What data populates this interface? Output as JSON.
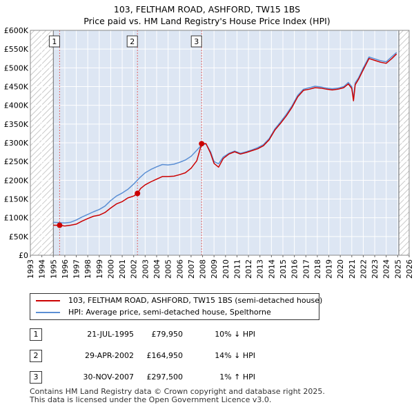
{
  "header": {
    "title": "103, FELTHAM ROAD, ASHFORD, TW15 1BS",
    "subtitle": "Price paid vs. HM Land Registry's House Price Index (HPI)"
  },
  "legend": {
    "items": [
      {
        "label": "103, FELTHAM ROAD, ASHFORD, TW15 1BS (semi-detached house)",
        "color": "#cc0000"
      },
      {
        "label": "HPI: Average price, semi-detached house, Spelthorne",
        "color": "#5b8fd4"
      }
    ]
  },
  "transactions": [
    {
      "marker": "1",
      "date": "21-JUL-1995",
      "price": "£79,950",
      "hpi_diff": "10% ↓ HPI"
    },
    {
      "marker": "2",
      "date": "29-APR-2002",
      "price": "£164,950",
      "hpi_diff": "14% ↓ HPI"
    },
    {
      "marker": "3",
      "date": "30-NOV-2007",
      "price": "£297,500",
      "hpi_diff": "1% ↑ HPI"
    }
  ],
  "footer": {
    "line1": "Contains HM Land Registry data © Crown copyright and database right 2025.",
    "line2": "This data is licensed under the Open Government Licence v3.0."
  },
  "chart_data": {
    "type": "line",
    "xlim": [
      1993,
      2026
    ],
    "ylim": [
      0,
      600000
    ],
    "y_ticks": [
      {
        "value": 0,
        "label": "£0"
      },
      {
        "value": 50000,
        "label": "£50K"
      },
      {
        "value": 100000,
        "label": "£100K"
      },
      {
        "value": 150000,
        "label": "£150K"
      },
      {
        "value": 200000,
        "label": "£200K"
      },
      {
        "value": 250000,
        "label": "£250K"
      },
      {
        "value": 300000,
        "label": "£300K"
      },
      {
        "value": 350000,
        "label": "£350K"
      },
      {
        "value": 400000,
        "label": "£400K"
      },
      {
        "value": 450000,
        "label": "£450K"
      },
      {
        "value": 500000,
        "label": "£500K"
      },
      {
        "value": 550000,
        "label": "£550K"
      },
      {
        "value": 600000,
        "label": "£600K"
      }
    ],
    "x_ticks": [
      "1993",
      "1994",
      "1995",
      "1996",
      "1997",
      "1998",
      "1999",
      "2000",
      "2001",
      "2002",
      "2003",
      "2004",
      "2005",
      "2006",
      "2007",
      "2008",
      "2009",
      "2010",
      "2011",
      "2012",
      "2013",
      "2014",
      "2015",
      "2016",
      "2017",
      "2018",
      "2019",
      "2020",
      "2021",
      "2022",
      "2023",
      "2024",
      "2025",
      "2026"
    ],
    "grid": true,
    "hatched_ranges": [
      [
        1993,
        1995.0
      ],
      [
        2025.1,
        2026
      ]
    ],
    "background_color": "#dde6f3",
    "grid_color": "#ffffff",
    "series": [
      {
        "name": "103, FELTHAM ROAD, ASHFORD, TW15 1BS (semi-detached house)",
        "color": "#cc0000",
        "points": [
          [
            1995.0,
            80000
          ],
          [
            1995.55,
            79950
          ],
          [
            1996.0,
            78000
          ],
          [
            1996.5,
            80000
          ],
          [
            1997.0,
            83000
          ],
          [
            1997.5,
            91000
          ],
          [
            1998.0,
            98000
          ],
          [
            1998.5,
            104000
          ],
          [
            1999.0,
            107000
          ],
          [
            1999.5,
            114000
          ],
          [
            2000.0,
            126000
          ],
          [
            2000.5,
            137000
          ],
          [
            2001.0,
            143000
          ],
          [
            2001.5,
            153000
          ],
          [
            2002.0,
            158000
          ],
          [
            2002.33,
            164950
          ],
          [
            2002.6,
            178000
          ],
          [
            2003.0,
            188000
          ],
          [
            2003.5,
            196000
          ],
          [
            2004.0,
            203000
          ],
          [
            2004.5,
            210000
          ],
          [
            2005.0,
            210000
          ],
          [
            2005.5,
            211000
          ],
          [
            2006.0,
            215000
          ],
          [
            2006.5,
            220000
          ],
          [
            2007.0,
            232000
          ],
          [
            2007.5,
            252000
          ],
          [
            2007.92,
            297500
          ],
          [
            2008.3,
            298000
          ],
          [
            2008.7,
            272000
          ],
          [
            2009.0,
            245000
          ],
          [
            2009.4,
            235000
          ],
          [
            2009.8,
            258000
          ],
          [
            2010.3,
            270000
          ],
          [
            2010.8,
            276000
          ],
          [
            2011.3,
            270000
          ],
          [
            2011.8,
            274000
          ],
          [
            2012.3,
            279000
          ],
          [
            2012.8,
            284000
          ],
          [
            2013.3,
            292000
          ],
          [
            2013.8,
            308000
          ],
          [
            2014.3,
            334000
          ],
          [
            2014.8,
            352000
          ],
          [
            2015.3,
            372000
          ],
          [
            2015.8,
            395000
          ],
          [
            2016.3,
            423000
          ],
          [
            2016.8,
            440000
          ],
          [
            2017.3,
            443000
          ],
          [
            2017.8,
            447000
          ],
          [
            2018.3,
            446000
          ],
          [
            2018.8,
            443000
          ],
          [
            2019.3,
            441000
          ],
          [
            2019.8,
            443000
          ],
          [
            2020.3,
            447000
          ],
          [
            2020.7,
            457000
          ],
          [
            2021.0,
            445000
          ],
          [
            2021.15,
            412000
          ],
          [
            2021.3,
            455000
          ],
          [
            2021.6,
            470000
          ],
          [
            2022.0,
            495000
          ],
          [
            2022.5,
            525000
          ],
          [
            2023.0,
            520000
          ],
          [
            2023.5,
            515000
          ],
          [
            2024.0,
            512000
          ],
          [
            2024.5,
            525000
          ],
          [
            2024.9,
            537000
          ]
        ]
      },
      {
        "name": "HPI: Average price, semi-detached house, Spelthorne",
        "color": "#5b8fd4",
        "points": [
          [
            1995.0,
            88000
          ],
          [
            1995.5,
            87000
          ],
          [
            1996.0,
            86000
          ],
          [
            1996.5,
            88000
          ],
          [
            1997.0,
            94000
          ],
          [
            1997.5,
            102000
          ],
          [
            1998.0,
            109000
          ],
          [
            1998.5,
            116000
          ],
          [
            1999.0,
            122000
          ],
          [
            1999.5,
            131000
          ],
          [
            2000.0,
            146000
          ],
          [
            2000.5,
            158000
          ],
          [
            2001.0,
            166000
          ],
          [
            2001.5,
            176000
          ],
          [
            2002.0,
            190000
          ],
          [
            2002.5,
            206000
          ],
          [
            2003.0,
            220000
          ],
          [
            2003.5,
            229000
          ],
          [
            2004.0,
            236000
          ],
          [
            2004.5,
            242000
          ],
          [
            2005.0,
            241000
          ],
          [
            2005.5,
            243000
          ],
          [
            2006.0,
            248000
          ],
          [
            2006.5,
            254000
          ],
          [
            2007.0,
            264000
          ],
          [
            2007.5,
            280000
          ],
          [
            2007.92,
            294000
          ],
          [
            2008.3,
            297000
          ],
          [
            2008.7,
            276000
          ],
          [
            2009.0,
            250000
          ],
          [
            2009.4,
            244000
          ],
          [
            2009.8,
            262000
          ],
          [
            2010.3,
            272000
          ],
          [
            2010.8,
            278000
          ],
          [
            2011.3,
            272000
          ],
          [
            2011.8,
            276000
          ],
          [
            2012.3,
            281000
          ],
          [
            2012.8,
            287000
          ],
          [
            2013.3,
            295000
          ],
          [
            2013.8,
            311000
          ],
          [
            2014.3,
            337000
          ],
          [
            2014.8,
            356000
          ],
          [
            2015.3,
            376000
          ],
          [
            2015.8,
            399000
          ],
          [
            2016.3,
            427000
          ],
          [
            2016.8,
            443000
          ],
          [
            2017.3,
            447000
          ],
          [
            2017.8,
            451000
          ],
          [
            2018.3,
            449000
          ],
          [
            2018.8,
            446000
          ],
          [
            2019.3,
            444000
          ],
          [
            2019.8,
            446000
          ],
          [
            2020.3,
            450000
          ],
          [
            2020.7,
            461000
          ],
          [
            2021.0,
            450000
          ],
          [
            2021.15,
            418000
          ],
          [
            2021.3,
            460000
          ],
          [
            2021.6,
            474000
          ],
          [
            2022.0,
            500000
          ],
          [
            2022.5,
            529000
          ],
          [
            2023.0,
            524000
          ],
          [
            2023.5,
            519000
          ],
          [
            2024.0,
            516000
          ],
          [
            2024.5,
            530000
          ],
          [
            2024.9,
            541000
          ]
        ]
      }
    ],
    "sale_markers": [
      {
        "label": "1",
        "x": 1995.55,
        "y": 79950
      },
      {
        "label": "2",
        "x": 2002.33,
        "y": 164950
      },
      {
        "label": "3",
        "x": 2007.92,
        "y": 297500
      }
    ]
  }
}
